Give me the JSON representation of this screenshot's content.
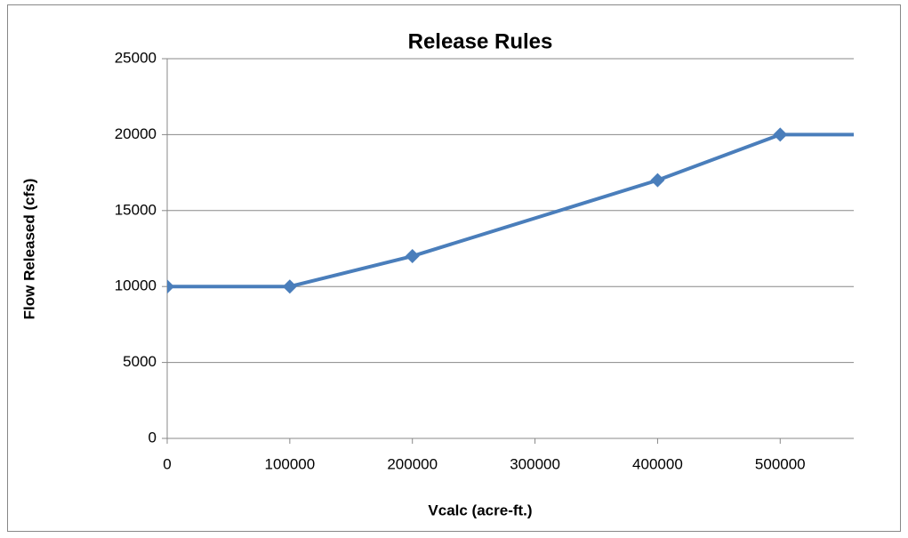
{
  "chart_data": {
    "type": "line",
    "title": "Release Rules",
    "x_label": "Vcalc (acre-ft.)",
    "y_label": "Flow Released (cfs)",
    "x": [
      0,
      100000,
      200000,
      400000,
      500000,
      600000
    ],
    "series": [
      {
        "name": "Release Rules",
        "color": "#4a7ebb",
        "values": [
          10000,
          10000,
          12000,
          17000,
          20000,
          20000
        ]
      }
    ],
    "xlim": [
      0,
      560000
    ],
    "xticks": [
      0,
      100000,
      200000,
      300000,
      400000,
      500000
    ],
    "ylim": [
      0,
      25000
    ],
    "yticks": [
      0,
      5000,
      10000,
      15000,
      20000,
      25000
    ],
    "grid": true,
    "legend": false
  }
}
